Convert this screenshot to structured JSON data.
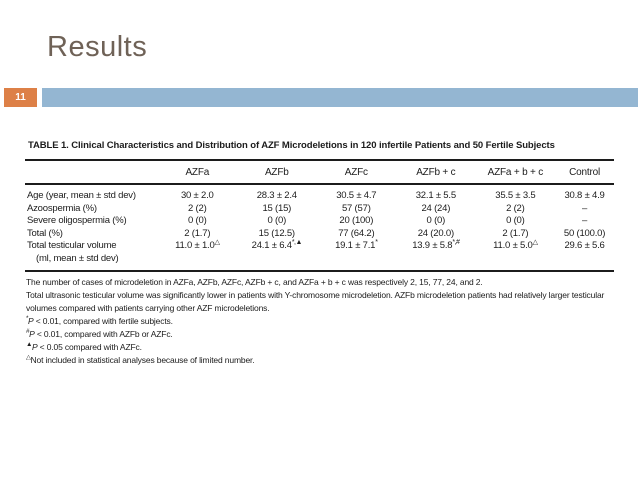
{
  "slide": {
    "title": "Results",
    "page_number": "11"
  },
  "colors": {
    "accent_orange": "#DD8047",
    "accent_blue": "#94B6D2",
    "title_text": "#6F6257",
    "table_ink": "#1C1C1C"
  },
  "table": {
    "caption": "TABLE 1.  Clinical Characteristics and Distribution of AZF Microdeletions in 120 infertile Patients and 50 Fertile Subjects",
    "columns": [
      "",
      "AZFa",
      "AZFb",
      "AZFc",
      "AZFb + c",
      "AZFa + b + c",
      "Control"
    ],
    "rows": [
      {
        "label": "Age (year, mean ± std dev)",
        "values": [
          "30 ± 2.0",
          "28.3 ± 2.4",
          "30.5 ± 4.7",
          "32.1 ± 5.5",
          "35.5 ± 3.5",
          "30.8 ± 4.9"
        ]
      },
      {
        "label": "Azoospermia (%)",
        "values": [
          "2 (2)",
          "15 (15)",
          "57 (57)",
          "24 (24)",
          "2 (2)",
          "–"
        ]
      },
      {
        "label": "Severe oligospermia (%)",
        "values": [
          "0 (0)",
          "0 (0)",
          "20 (100)",
          "0 (0)",
          "0 (0)",
          "–"
        ]
      },
      {
        "label": "Total (%)",
        "values": [
          "2 (1.7)",
          "15 (12.5)",
          "77 (64.2)",
          "24 (20.0)",
          "2 (1.7)",
          "50 (100.0)"
        ]
      },
      {
        "label": "Total testicular volume",
        "label_line2": "(ml, mean ± std dev)",
        "values": [
          "11.0 ± 1.0^△",
          "24.1 ± 6.4^*,▲",
          "19.1 ± 7.1^*",
          "13.9 ± 5.8^*,#",
          "11.0 ± 5.0^△",
          "29.6 ± 5.6"
        ]
      }
    ],
    "footnotes": [
      {
        "marker": "",
        "text": "The number of cases of microdeletion in AZFa, AZFb, AZFc, AZFb + c, and AZFa + b + c was respectively 2, 15, 77, 24, and 2."
      },
      {
        "marker": "",
        "text": "Total ultrasonic testicular volume was significantly lower in patients with Y-chromosome microdeletion. AZFb microdeletion patients had relatively larger testicular volumes compared with patients carrying other AZF microdeletions."
      },
      {
        "marker": "*",
        "text": "P < 0.01, compared with fertile subjects."
      },
      {
        "marker": "#",
        "text": "P < 0.01, compared with AZFb or AZFc."
      },
      {
        "marker": "▲",
        "text": "P < 0.05 compared with AZFc."
      },
      {
        "marker": "△",
        "text": "Not included in statistical analyses because of limited number."
      }
    ]
  }
}
